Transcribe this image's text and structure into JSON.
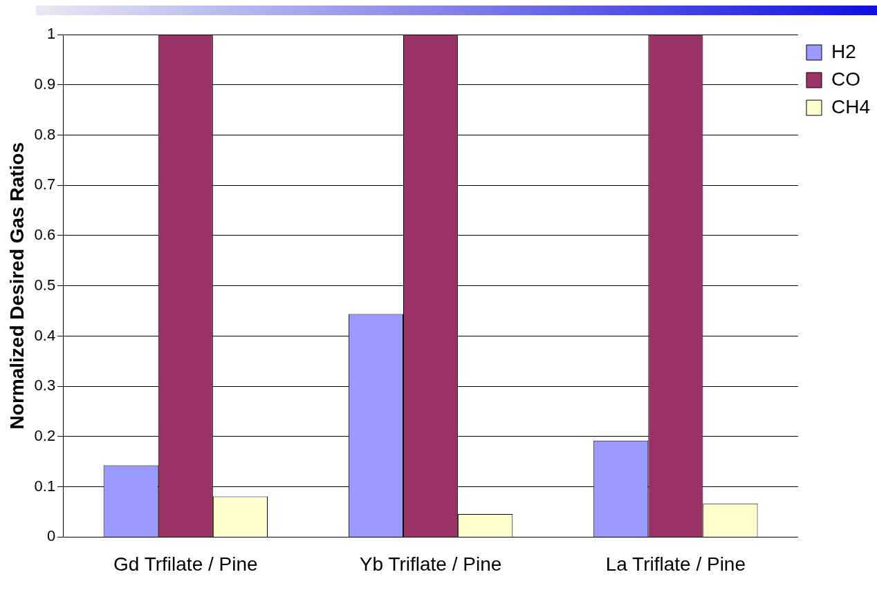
{
  "chart_data": {
    "type": "bar",
    "ylabel": "Normalized Desired Gas Ratios",
    "categories": [
      "Gd Trfilate / Pine",
      "Yb Triflate / Pine",
      "La Triflate / Pine"
    ],
    "series": [
      {
        "name": "H2",
        "color": "#9999ff",
        "values": [
          0.143,
          0.444,
          0.192
        ]
      },
      {
        "name": "CO",
        "color": "#993366",
        "values": [
          1,
          1,
          1
        ]
      },
      {
        "name": "CH4",
        "color": "#ffffcc",
        "values": [
          0.081,
          0.046,
          0.067
        ]
      }
    ],
    "ylim": [
      0,
      1
    ],
    "yticks": [
      0,
      0.1,
      0.2,
      0.3,
      0.4,
      0.5,
      0.6,
      0.7,
      0.8,
      0.9,
      1
    ],
    "grid": "y",
    "legend": "top right"
  }
}
